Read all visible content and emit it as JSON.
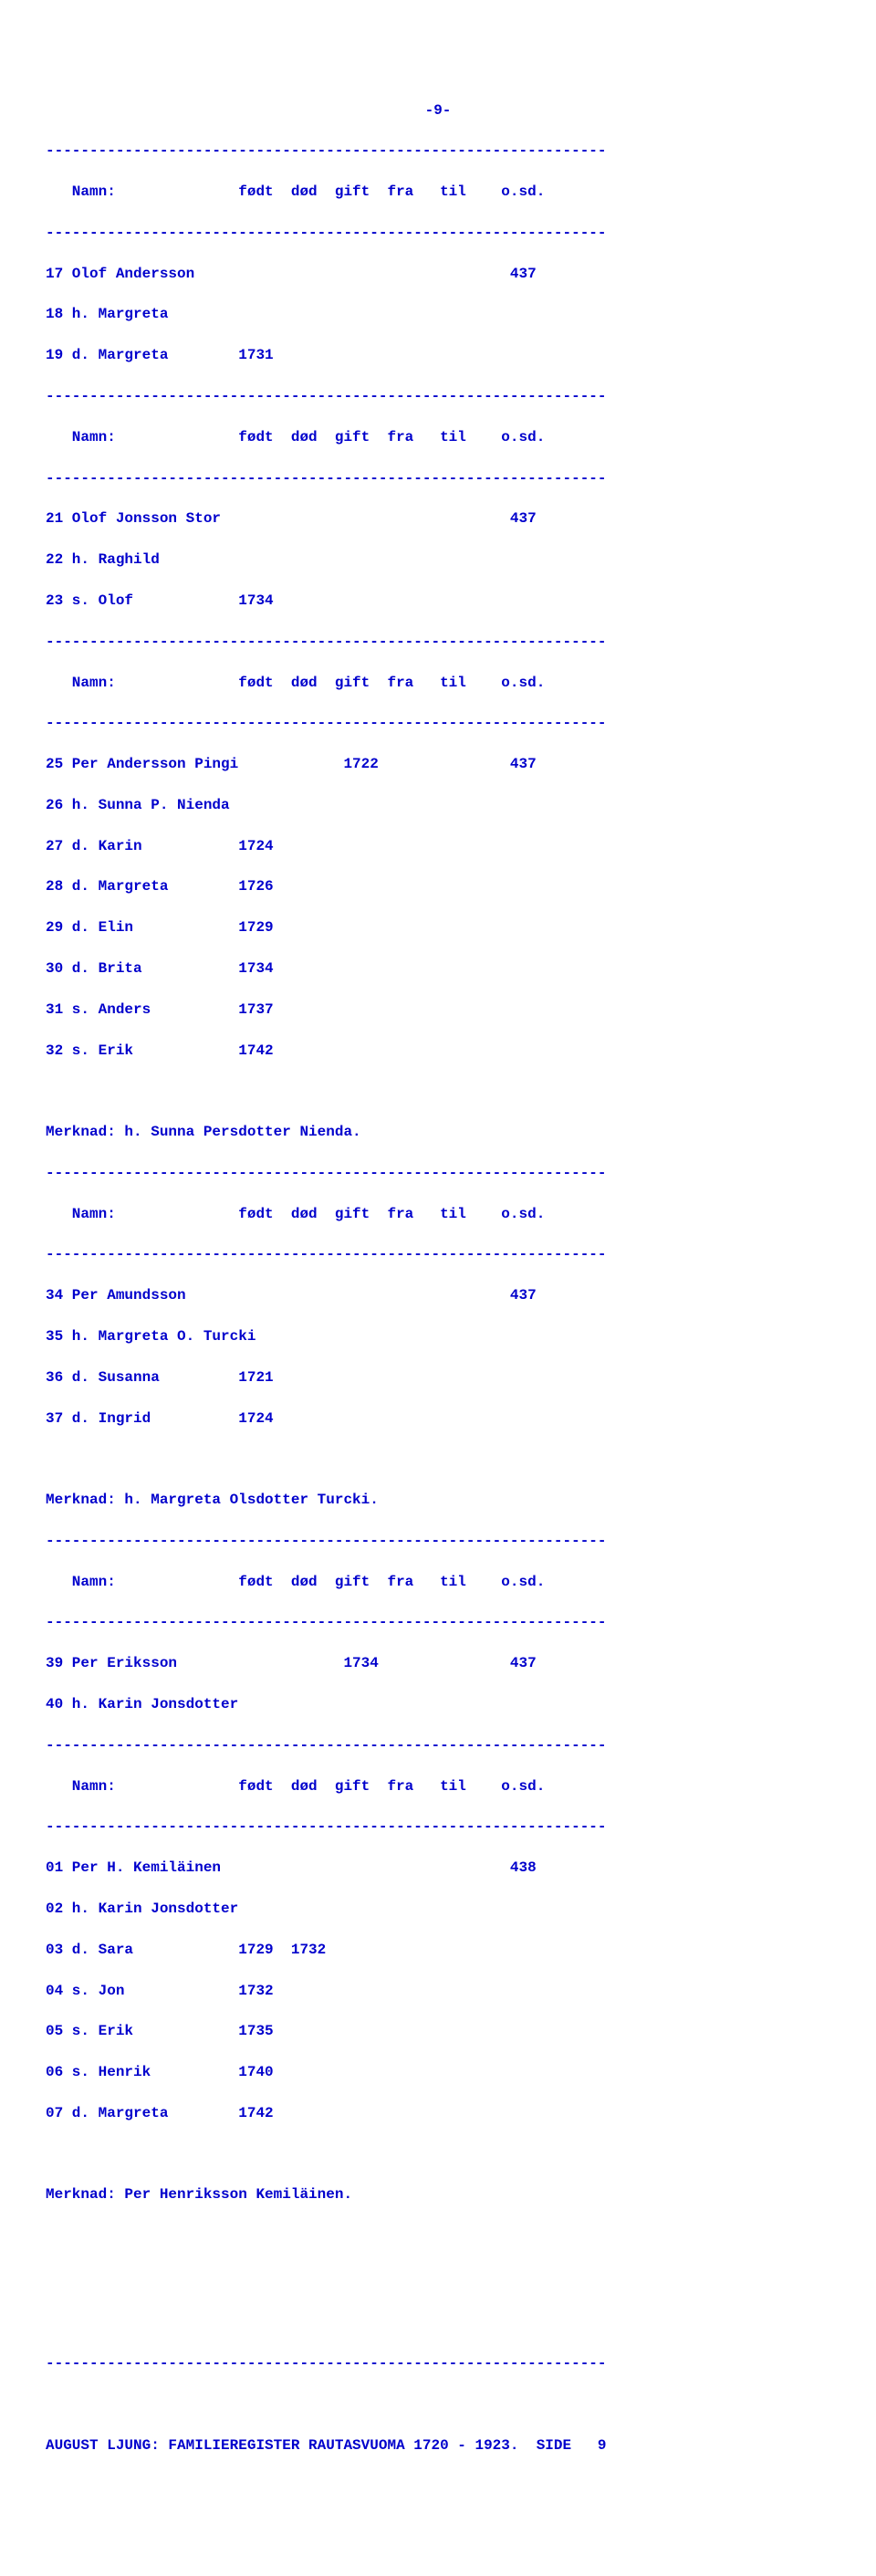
{
  "page_number_top": "-9-",
  "hr": "----------------------------------------------------------------",
  "header_line": "   Namn:              født  død  gift  fra   til    o.sd.",
  "block1": [
    "17 Olof Andersson                                    437",
    "18 h. Margreta",
    "19 d. Margreta        1731"
  ],
  "block2": [
    "21 Olof Jonsson Stor                                 437",
    "22 h. Raghild",
    "23 s. Olof            1734"
  ],
  "block3": [
    "25 Per Andersson Pingi            1722               437",
    "26 h. Sunna P. Nienda",
    "27 d. Karin           1724",
    "28 d. Margreta        1726",
    "29 d. Elin            1729",
    "30 d. Brita           1734",
    "31 s. Anders          1737",
    "32 s. Erik            1742"
  ],
  "note3": "Merknad: h. Sunna Persdotter Nienda.",
  "block4": [
    "34 Per Amundsson                                     437",
    "35 h. Margreta O. Turcki",
    "36 d. Susanna         1721",
    "37 d. Ingrid          1724"
  ],
  "note4": "Merknad: h. Margreta Olsdotter Turcki.",
  "block5": [
    "39 Per Eriksson                   1734               437",
    "40 h. Karin Jonsdotter"
  ],
  "block6": [
    "01 Per H. Kemiläinen                                 438",
    "02 h. Karin Jonsdotter",
    "03 d. Sara            1729  1732",
    "04 s. Jon             1732",
    "05 s. Erik            1735",
    "06 s. Henrik          1740",
    "07 d. Margreta        1742"
  ],
  "note6": "Merknad: Per Henriksson Kemiläinen.",
  "footer": "AUGUST LJUNG: FAMILIEREGISTER RAUTASVUOMA 1720 - 1923.  SIDE   9"
}
